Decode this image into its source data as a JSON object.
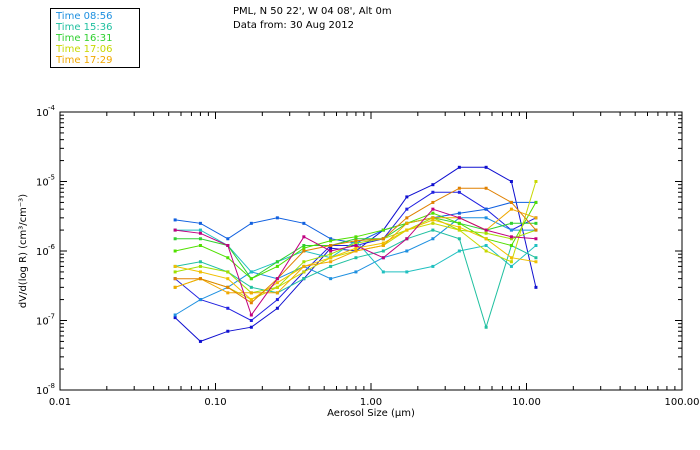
{
  "header": {
    "location": "PML, N 50 22', W 04 08', Alt 0m",
    "date_line": "Data from: 30 Aug 2012"
  },
  "legend": [
    {
      "label": "Time 08:56",
      "color": "#1e90e0"
    },
    {
      "label": "Time 15:36",
      "color": "#20c0a0"
    },
    {
      "label": "Time 16:31",
      "color": "#30d030"
    },
    {
      "label": "Time 17:06",
      "color": "#c8d800"
    },
    {
      "label": "Time 17:29",
      "color": "#f0a800"
    }
  ],
  "chart_data": {
    "type": "line",
    "xscale": "log",
    "yscale": "log",
    "xlabel": "Aerosol Size (µm)",
    "ylabel": "dV/d(log R) (cm³/cm⁻³)",
    "xlim": [
      0.01,
      100.0
    ],
    "ylim": [
      1e-08,
      0.0001
    ],
    "x_ticks": [
      {
        "value": 0.01,
        "label": "0.01"
      },
      {
        "value": 0.1,
        "label": "0.10"
      },
      {
        "value": 1.0,
        "label": "1.00"
      },
      {
        "value": 10.0,
        "label": "10.00"
      },
      {
        "value": 100.0,
        "label": "100.00"
      }
    ],
    "y_ticks": [
      {
        "value": 1e-08,
        "base": "10",
        "exp": "-8"
      },
      {
        "value": 1e-07,
        "base": "10",
        "exp": "-7"
      },
      {
        "value": 1e-06,
        "base": "10",
        "exp": "-6"
      },
      {
        "value": 1e-05,
        "base": "10",
        "exp": "-5"
      },
      {
        "value": 0.0001,
        "base": "10",
        "exp": "-4"
      }
    ],
    "x": [
      0.055,
      0.08,
      0.12,
      0.17,
      0.25,
      0.37,
      0.55,
      0.8,
      1.2,
      1.7,
      2.5,
      3.7,
      5.5,
      8.0,
      11.5
    ],
    "series": [
      {
        "name": "s1",
        "color": "#1010d0",
        "values": [
          1.1e-07,
          5e-08,
          7e-08,
          8e-08,
          1.5e-07,
          4e-07,
          1.1e-06,
          1e-06,
          2e-06,
          6e-06,
          9e-06,
          1.6e-05,
          1.6e-05,
          1e-05,
          3e-07
        ]
      },
      {
        "name": "s2",
        "color": "#2020e0",
        "values": [
          4e-07,
          2e-07,
          1.5e-07,
          1e-07,
          2e-07,
          5e-07,
          1.2e-06,
          1.2e-06,
          1.5e-06,
          4e-06,
          7e-06,
          7e-06,
          4e-06,
          2e-06,
          3e-06
        ]
      },
      {
        "name": "s3",
        "color": "#1060e0",
        "values": [
          2.8e-06,
          2.5e-06,
          1.5e-06,
          2.5e-06,
          3e-06,
          2.5e-06,
          1.5e-06,
          1.3e-06,
          2e-06,
          2.5e-06,
          3e-06,
          3.5e-06,
          4e-06,
          5e-06,
          5e-06
        ]
      },
      {
        "name": "s4",
        "color": "#1e90e0",
        "values": [
          1.2e-07,
          2e-07,
          3e-07,
          5e-07,
          4e-07,
          6e-07,
          4e-07,
          5e-07,
          8e-07,
          1e-06,
          1.5e-06,
          3e-06,
          3e-06,
          2e-06,
          2e-06
        ]
      },
      {
        "name": "s5",
        "color": "#20c0c0",
        "values": [
          2e-06,
          2e-06,
          1.2e-06,
          5e-07,
          7e-07,
          1e-06,
          8e-07,
          1.4e-06,
          5e-07,
          5e-07,
          6e-07,
          1e-06,
          1.2e-06,
          6e-07,
          1.2e-06
        ]
      },
      {
        "name": "s6",
        "color": "#20c0a0",
        "values": [
          6e-07,
          7e-07,
          5e-07,
          3e-07,
          2.5e-07,
          4e-07,
          6e-07,
          8e-07,
          1e-06,
          1.5e-06,
          2e-06,
          1.5e-06,
          8e-08,
          1.2e-06,
          8e-07
        ]
      },
      {
        "name": "s7",
        "color": "#30d030",
        "values": [
          1.5e-06,
          1.5e-06,
          1.2e-06,
          4e-07,
          7e-07,
          1.2e-06,
          1.2e-06,
          1.5e-06,
          1.5e-06,
          2.5e-06,
          3e-06,
          2.5e-06,
          2e-06,
          2.5e-06,
          2.5e-06
        ]
      },
      {
        "name": "s8",
        "color": "#50e000",
        "values": [
          1e-06,
          1.2e-06,
          8e-07,
          4e-07,
          6e-07,
          1.1e-06,
          1.4e-06,
          1.6e-06,
          2e-06,
          2.5e-06,
          3.5e-06,
          2.5e-06,
          1.5e-06,
          1.2e-06,
          5e-06
        ]
      },
      {
        "name": "s9",
        "color": "#a0e000",
        "values": [
          5e-07,
          6e-07,
          5e-07,
          2.5e-07,
          3e-07,
          7e-07,
          9e-07,
          1.3e-06,
          1.5e-06,
          2e-06,
          3e-06,
          2e-06,
          1.8e-06,
          1.5e-06,
          2e-06
        ]
      },
      {
        "name": "s10",
        "color": "#c8d800",
        "values": [
          3e-07,
          4e-07,
          3e-07,
          2e-07,
          3e-07,
          5e-07,
          8e-07,
          1e-06,
          1.2e-06,
          2e-06,
          2.5e-06,
          2e-06,
          1e-06,
          7e-07,
          1e-05
        ]
      },
      {
        "name": "s11",
        "color": "#f0c000",
        "values": [
          6e-07,
          5e-07,
          4e-07,
          2e-07,
          3.5e-07,
          6e-07,
          8e-07,
          1.1e-06,
          1.3e-06,
          2e-06,
          2.8e-06,
          2.2e-06,
          1.5e-06,
          8e-07,
          7e-07
        ]
      },
      {
        "name": "s12",
        "color": "#f0a800",
        "values": [
          3e-07,
          4e-07,
          2.5e-07,
          2.5e-07,
          2.5e-07,
          6e-07,
          7e-07,
          1e-06,
          1.2e-06,
          2.5e-06,
          3e-06,
          3e-06,
          2e-06,
          4e-06,
          3e-06
        ]
      },
      {
        "name": "s13",
        "color": "#e08000",
        "values": [
          4e-07,
          4e-07,
          3e-07,
          1.8e-07,
          4e-07,
          1e-06,
          1.2e-06,
          1.4e-06,
          1.5e-06,
          3e-06,
          5e-06,
          8e-06,
          8e-06,
          5e-06,
          2e-06
        ]
      },
      {
        "name": "s14",
        "color": "#c00080",
        "values": [
          2e-06,
          1.8e-06,
          1.2e-06,
          1.2e-07,
          4e-07,
          1.6e-06,
          1e-06,
          1.2e-06,
          8e-07,
          1.5e-06,
          4e-06,
          3e-06,
          2e-06,
          1.6e-06,
          1.5e-06
        ]
      }
    ]
  }
}
